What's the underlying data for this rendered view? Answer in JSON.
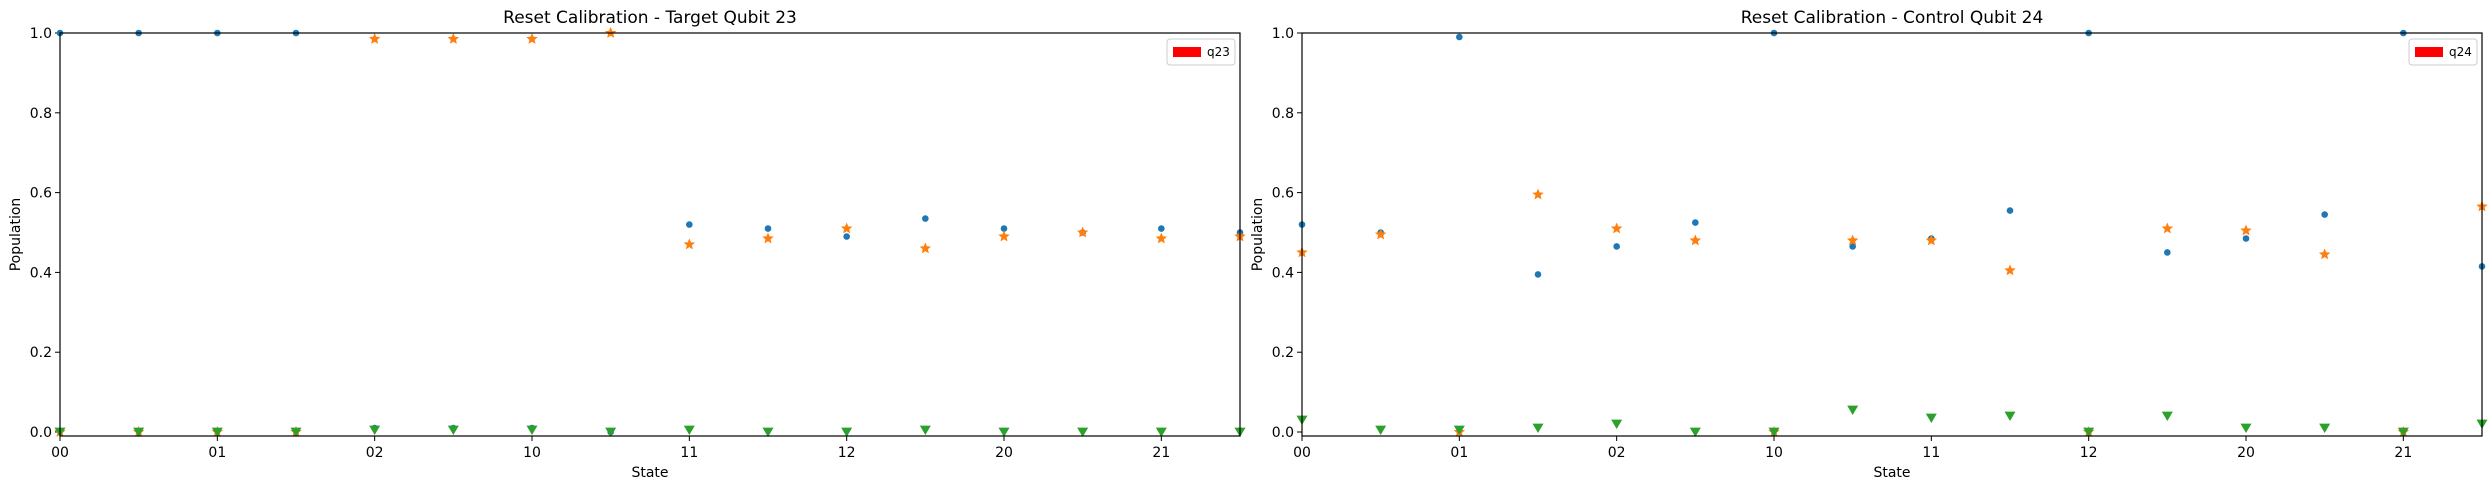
{
  "chart_data": [
    {
      "type": "scatter",
      "title": "Reset Calibration - Target Qubit 23",
      "xlabel": "State",
      "ylabel": "Population",
      "x_tick_labels": [
        "00",
        "01",
        "02",
        "10",
        "11",
        "12",
        "20",
        "21"
      ],
      "y_ticks": [
        "0.0",
        "0.2",
        "0.4",
        "0.6",
        "0.8",
        "1.0"
      ],
      "xlim": [
        0,
        7.5
      ],
      "ylim": [
        -0.01,
        1.0
      ],
      "grid": false,
      "legend": {
        "placement": "top-right",
        "entries": [
          {
            "label": "q23",
            "color": "#ff0000"
          }
        ]
      },
      "x": [
        0,
        0.5,
        1,
        1.5,
        2,
        2.5,
        3,
        3.5,
        4,
        4.5,
        5,
        5.5,
        6,
        6.5,
        7,
        7.5
      ],
      "series": [
        {
          "marker": "circle",
          "color": "#1f77b4",
          "values": [
            1.0,
            1.0,
            1.0,
            1.0,
            0.01,
            0.01,
            0.01,
            0.0,
            0.52,
            0.51,
            0.49,
            0.535,
            0.51,
            0.5,
            0.51,
            0.5
          ]
        },
        {
          "marker": "star",
          "color": "#ff7f0e",
          "values": [
            0.0,
            0.0,
            0.0,
            0.0,
            0.985,
            0.985,
            0.985,
            1.0,
            0.47,
            0.485,
            0.51,
            0.46,
            0.49,
            0.5,
            0.485,
            0.49
          ]
        },
        {
          "marker": "triangle-down",
          "color": "#2ca02c",
          "values": [
            0.0,
            0.0,
            0.0,
            0.0,
            0.005,
            0.005,
            0.005,
            0.0,
            0.005,
            0.0,
            0.0,
            0.005,
            0.0,
            0.0,
            0.0,
            0.0
          ]
        }
      ]
    },
    {
      "type": "scatter",
      "title": "Reset Calibration - Control Qubit 24",
      "xlabel": "State",
      "ylabel": "Population",
      "x_tick_labels": [
        "00",
        "01",
        "02",
        "10",
        "11",
        "12",
        "20",
        "21"
      ],
      "y_ticks": [
        "0.0",
        "0.2",
        "0.4",
        "0.6",
        "0.8",
        "1.0"
      ],
      "xlim": [
        0,
        7.5
      ],
      "ylim": [
        -0.01,
        1.0
      ],
      "grid": false,
      "legend": {
        "placement": "top-right",
        "entries": [
          {
            "label": "q24",
            "color": "#ff0000"
          }
        ]
      },
      "x": [
        0,
        0.5,
        1,
        1.5,
        2,
        2.5,
        3,
        3.5,
        4,
        4.5,
        5,
        5.5,
        6,
        6.5,
        7,
        7.5
      ],
      "series": [
        {
          "marker": "circle",
          "color": "#1f77b4",
          "values": [
            0.52,
            0.5,
            0.99,
            0.395,
            0.465,
            0.525,
            1.0,
            0.465,
            0.485,
            0.555,
            1.0,
            0.45,
            0.485,
            0.545,
            1.0,
            0.415
          ]
        },
        {
          "marker": "star",
          "color": "#ff7f0e",
          "values": [
            0.45,
            0.495,
            0.0,
            0.595,
            0.51,
            0.48,
            0.0,
            0.48,
            0.48,
            0.405,
            0.0,
            0.51,
            0.505,
            0.445,
            0.0,
            0.565
          ]
        },
        {
          "marker": "triangle-down",
          "color": "#2ca02c",
          "values": [
            0.03,
            0.005,
            0.005,
            0.01,
            0.02,
            0.0,
            0.0,
            0.055,
            0.035,
            0.04,
            0.0,
            0.04,
            0.01,
            0.01,
            0.0,
            0.02
          ]
        }
      ]
    }
  ]
}
